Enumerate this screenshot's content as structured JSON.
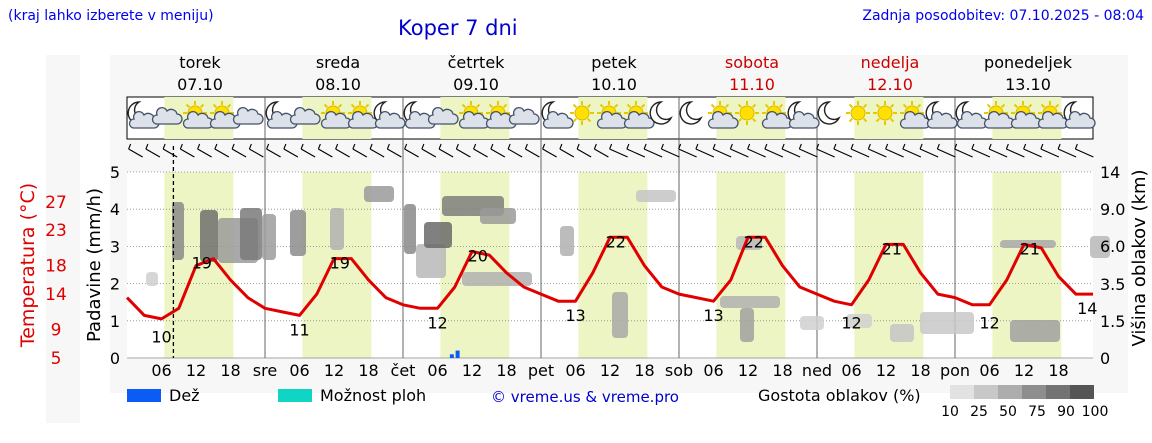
{
  "header": {
    "hint": "(kraj lahko izberete v meniju)",
    "title": "Koper 7 dni",
    "updated": "Zadnja posodobitev: 07.10.2025 - 08:04"
  },
  "days": [
    {
      "name": "torek",
      "date": "07.10",
      "weekend": false,
      "abbr": ""
    },
    {
      "name": "sreda",
      "date": "08.10",
      "weekend": false,
      "abbr": "sre"
    },
    {
      "name": "četrtek",
      "date": "09.10",
      "weekend": false,
      "abbr": "čet"
    },
    {
      "name": "petek",
      "date": "10.10",
      "weekend": false,
      "abbr": "pet"
    },
    {
      "name": "sobota",
      "date": "11.10",
      "weekend": true,
      "abbr": "sob"
    },
    {
      "name": "nedelja",
      "date": "12.10",
      "weekend": true,
      "abbr": "ned"
    },
    {
      "name": "ponedeljek",
      "date": "13.10",
      "weekend": false,
      "abbr": "pon"
    }
  ],
  "weather_icons": [
    [
      "moon-cloud",
      "cloudy",
      "sun-cloud",
      "sun-cloud",
      "cloudy"
    ],
    [
      "moon-cloud",
      "cloudy",
      "sun-cloud",
      "sun-cloud",
      "moon-cloud"
    ],
    [
      "moon-cloud",
      "cloudy",
      "sun-cloud",
      "sun-cloud",
      "cloudy"
    ],
    [
      "moon-cloud",
      "sun",
      "sun-cloud",
      "sun-cloud",
      "moon"
    ],
    [
      "moon",
      "sun-cloud",
      "sun",
      "sun-cloud",
      "moon-cloud"
    ],
    [
      "moon",
      "sun",
      "sun",
      "sun-cloud",
      "moon-cloud"
    ],
    [
      "moon-cloud",
      "sun-cloud",
      "sun-cloud",
      "sun-cloud",
      "moon-cloud"
    ]
  ],
  "colors": {
    "temperature": "#e00000",
    "rain": "#0a5cf5",
    "showers": "#10d4c4",
    "daylight": "#eef5c4",
    "weekend_text": "#cc0000"
  },
  "chart_data": {
    "type": "line",
    "x_start": "07.10.2025 00:00",
    "x_end": "14.10.2025 00:00",
    "now_marker": "07.10.2025 08:04",
    "hour_ticks": [
      "06",
      "12",
      "18"
    ],
    "temperature_axis": {
      "label": "Temperatura (°C)",
      "ticks": [
        5,
        9,
        14,
        18,
        23,
        27
      ],
      "range": [
        5,
        27
      ]
    },
    "precip_axis": {
      "label": "Padavine (mm/h)",
      "ticks": [
        0,
        1,
        2,
        3,
        4,
        5
      ],
      "range": [
        0,
        5
      ]
    },
    "cloud_axis": {
      "label": "Višina oblakov (km)",
      "ticks": [
        "0",
        "1.5",
        "3.5",
        "6.0",
        "9.0",
        "14"
      ]
    },
    "temperature_series": {
      "name": "Temperatura",
      "hours": [
        0,
        3,
        6,
        9,
        12,
        15,
        18,
        21,
        24,
        27,
        30,
        33,
        36,
        39,
        42,
        45,
        48,
        51,
        54,
        57,
        60,
        63,
        66,
        69,
        72,
        75,
        78,
        81,
        84,
        87,
        90,
        93,
        96,
        99,
        102,
        105,
        108,
        111,
        114,
        117,
        120,
        123,
        126,
        129,
        132,
        135,
        138,
        141,
        144,
        147,
        150,
        153,
        156,
        159,
        162,
        165,
        168
      ],
      "values": [
        13.5,
        11,
        10.5,
        12,
        18,
        19,
        16,
        13.5,
        12,
        11.5,
        11,
        14,
        19,
        19,
        16,
        13.5,
        12.5,
        12,
        12,
        15,
        20,
        19.5,
        17,
        15,
        14,
        13,
        13,
        17,
        22,
        22,
        18,
        15,
        14,
        13.5,
        13,
        16,
        22,
        22,
        18,
        15,
        14,
        13,
        12.5,
        16,
        21,
        21,
        17,
        14,
        13.5,
        12.5,
        12.5,
        16,
        21,
        20.5,
        16.5,
        14,
        14
      ]
    },
    "temperature_labels": [
      {
        "hour": 6,
        "value": "10"
      },
      {
        "hour": 13,
        "value": "19"
      },
      {
        "hour": 30,
        "value": "11"
      },
      {
        "hour": 37,
        "value": "19"
      },
      {
        "hour": 54,
        "value": "12"
      },
      {
        "hour": 61,
        "value": "20"
      },
      {
        "hour": 78,
        "value": "13"
      },
      {
        "hour": 85,
        "value": "22"
      },
      {
        "hour": 102,
        "value": "13"
      },
      {
        "hour": 109,
        "value": "22"
      },
      {
        "hour": 126,
        "value": "12"
      },
      {
        "hour": 133,
        "value": "21"
      },
      {
        "hour": 150,
        "value": "12"
      },
      {
        "hour": 157,
        "value": "21"
      },
      {
        "hour": 167,
        "value": "14"
      }
    ],
    "precipitation": [
      {
        "hour": 56.5,
        "mm": 0.1
      },
      {
        "hour": 57.5,
        "mm": 0.2
      }
    ],
    "legend": [
      {
        "label": "Dež",
        "swatch": "rain"
      },
      {
        "label": "Možnost ploh",
        "swatch": "showers"
      }
    ],
    "cloud_density": {
      "label": "Gostota oblakov (%)",
      "steps": [
        "10",
        "25",
        "50",
        "75",
        "90",
        "100"
      ]
    },
    "grid": true
  },
  "footer": {
    "credit": "© vreme.us & vreme.pro"
  }
}
